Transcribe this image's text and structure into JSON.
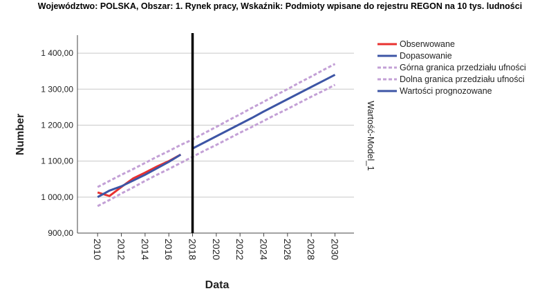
{
  "chart_data": {
    "type": "line",
    "title": "Województwo: POLSKA, Obszar: 1. Rynek pracy, Wskaźnik: Podmioty wpisane do rejestru REGON na 10 tys. ludności",
    "x_label": "Data",
    "y_label": "Number",
    "y2_label": "Wartość-Model_1",
    "x": [
      2010,
      2011,
      2012,
      2013,
      2014,
      2015,
      2016,
      2017,
      2018,
      2019,
      2020,
      2021,
      2022,
      2023,
      2024,
      2025,
      2026,
      2027,
      2028,
      2029,
      2030
    ],
    "series": [
      {
        "name": "Obserwowane",
        "color": "#e8312f",
        "dash": false,
        "values": [
          1013,
          1003,
          1028,
          1052,
          1068,
          1085,
          1100,
          1118,
          null,
          null,
          null,
          null,
          null,
          null,
          null,
          null,
          null,
          null,
          null,
          null,
          null
        ]
      },
      {
        "name": "Dopasowanie",
        "color": "#3d55a5",
        "dash": false,
        "values": [
          1000,
          1018,
          1030,
          1046,
          1062,
          1080,
          1098,
          1118,
          null,
          null,
          null,
          null,
          null,
          null,
          null,
          null,
          null,
          null,
          null,
          null,
          null
        ]
      },
      {
        "name": "Górna granica przedziału ufności",
        "color": "#c3a0d6",
        "dash": true,
        "values": [
          1028,
          1045,
          1062,
          1078,
          1095,
          1112,
          1128,
          1145,
          1160,
          1178,
          1195,
          1213,
          1230,
          1248,
          1265,
          1283,
          1300,
          1318,
          1335,
          1353,
          1370
        ]
      },
      {
        "name": "Dolna granica przedziału ufności",
        "color": "#c3a0d6",
        "dash": true,
        "values": [
          975,
          992,
          1010,
          1027,
          1045,
          1062,
          1078,
          1095,
          1112,
          1129,
          1145,
          1162,
          1179,
          1195,
          1212,
          1229,
          1245,
          1262,
          1279,
          1295,
          1312
        ]
      },
      {
        "name": "Wartości prognozowane",
        "color": "#3d55a5",
        "dash": false,
        "values": [
          null,
          null,
          null,
          null,
          null,
          null,
          null,
          null,
          1135,
          1152,
          1169,
          1186,
          1203,
          1220,
          1238,
          1255,
          1272,
          1289,
          1306,
          1323,
          1340
        ]
      }
    ],
    "reference_x": 2018,
    "xlim": [
      2008.3,
      2031.6
    ],
    "xticks": [
      2010,
      2012,
      2014,
      2016,
      2018,
      2020,
      2022,
      2024,
      2026,
      2028,
      2030
    ],
    "ylim": [
      900,
      1450
    ],
    "yticks": [
      {
        "value": 900,
        "label": "900,00"
      },
      {
        "value": 1000,
        "label": "1 000,00"
      },
      {
        "value": 1100,
        "label": "1 100,00"
      },
      {
        "value": 1200,
        "label": "1 200,00"
      },
      {
        "value": 1300,
        "label": "1 300,00"
      },
      {
        "value": 1400,
        "label": "1 400,00"
      }
    ],
    "grid": true
  }
}
